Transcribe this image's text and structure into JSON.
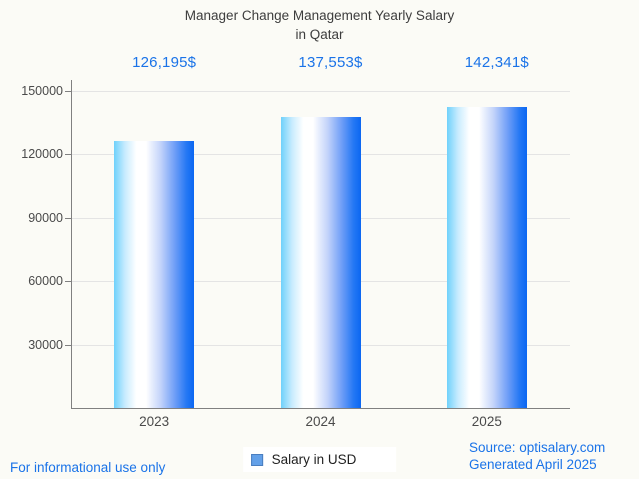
{
  "chart_data": {
    "type": "bar",
    "title": "Manager Change Management Yearly Salary in Qatar",
    "title_line1": "Manager Change Management Yearly Salary",
    "title_line2": "in Qatar",
    "categories": [
      "2023",
      "2024",
      "2025"
    ],
    "series": [
      {
        "name": "Salary in USD",
        "values": [
          126195,
          137553,
          142341
        ]
      }
    ],
    "value_labels": [
      "126,195$",
      "137,553$",
      "142,341$"
    ],
    "ylim": [
      0,
      150000
    ],
    "yticks": [
      30000,
      60000,
      90000,
      120000,
      150000
    ],
    "ytick_labels": [
      "30000",
      "60000",
      "90000",
      "120000",
      "150000"
    ],
    "xlabel": "",
    "ylabel": "",
    "grid": true,
    "legend_position": "bottom",
    "colors": {
      "accent_text": "#1a73e8",
      "bar_gradient_left": "#6fd1fb",
      "bar_gradient_mid": "#ffffff",
      "bar_gradient_right": "#0b67f2",
      "legend_swatch_fill": "#63a0e8",
      "legend_swatch_border": "#4a7ebf",
      "axis": "#808080",
      "gridline": "#e4e4e4",
      "label_text": "#4a4a4a",
      "title_text": "#3d3d3d",
      "background": "#fbfbf6"
    }
  },
  "legend": {
    "label": "Salary in USD"
  },
  "footer": {
    "disclaimer": "For informational use only",
    "source": "Source: optisalary.com",
    "generated": "Generated April 2025"
  }
}
